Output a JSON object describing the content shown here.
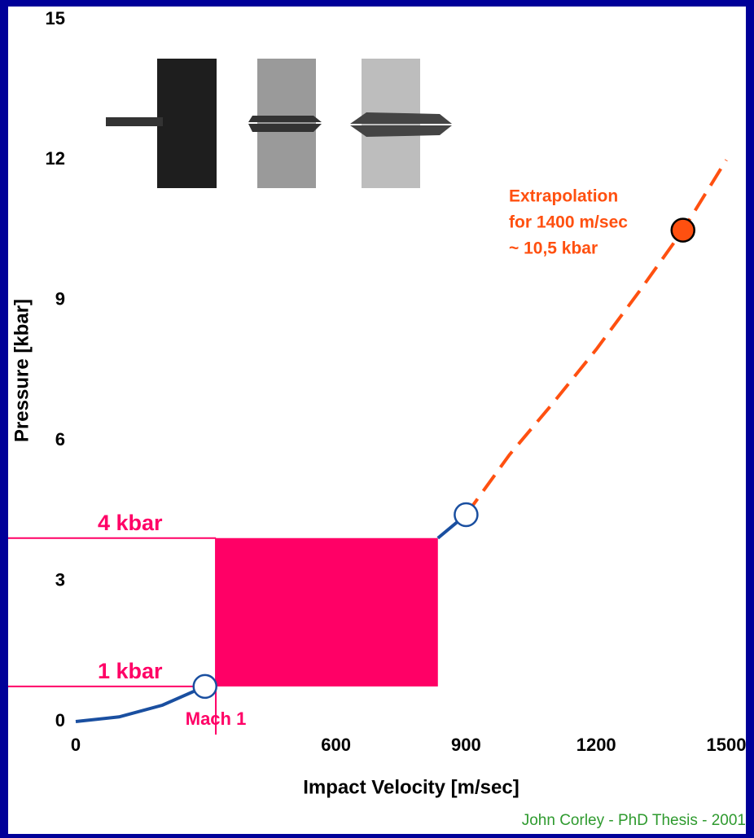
{
  "chart_data": {
    "type": "line",
    "xlabel": "Impact Velocity [m/sec]",
    "ylabel": "Pressure [kbar]",
    "xlim": [
      0,
      1500
    ],
    "ylim": [
      0,
      15
    ],
    "xticks": [
      0,
      600,
      900,
      1200,
      1500
    ],
    "yticks": [
      0,
      3,
      6,
      9,
      12,
      15
    ],
    "series": [
      {
        "color": "#1a4fa0",
        "x": [
          0,
          100,
          200,
          298
        ],
        "values": [
          0,
          0.1,
          0.35,
          0.75
        ]
      },
      {
        "color": "#1a4fa0",
        "x": [
          835,
          900
        ],
        "values": [
          3.92,
          4.42
        ]
      },
      {
        "color": "#ff5010",
        "dashed": true,
        "x": [
          900,
          1000,
          1100,
          1200,
          1300,
          1400,
          1500
        ],
        "values": [
          4.42,
          5.7,
          6.8,
          7.95,
          9.2,
          10.5,
          12.0
        ]
      }
    ],
    "markers": [
      {
        "x": 298,
        "value": 0.75,
        "filled": false,
        "color": "#1a4fa0"
      },
      {
        "x": 900,
        "value": 4.42,
        "filled": false,
        "color": "#1a4fa0"
      },
      {
        "x": 1400,
        "value": 10.5,
        "filled": true,
        "color": "#ff5010"
      }
    ],
    "highlight": {
      "xlim": [
        323,
        835
      ],
      "ylim": [
        0.75,
        3.92
      ],
      "color": "#ff0066"
    },
    "reference_lines": [
      {
        "label": "4 kbar",
        "y": 3.92
      },
      {
        "label": "1 kbar",
        "y": 0.75
      },
      {
        "label": "Mach 1",
        "x": 323
      }
    ],
    "annotation": [
      "Extrapolation",
      "for 1400 m/sec",
      "~ 10,5 kbar"
    ],
    "footer": "John Corley - PhD Thesis - 2001"
  }
}
